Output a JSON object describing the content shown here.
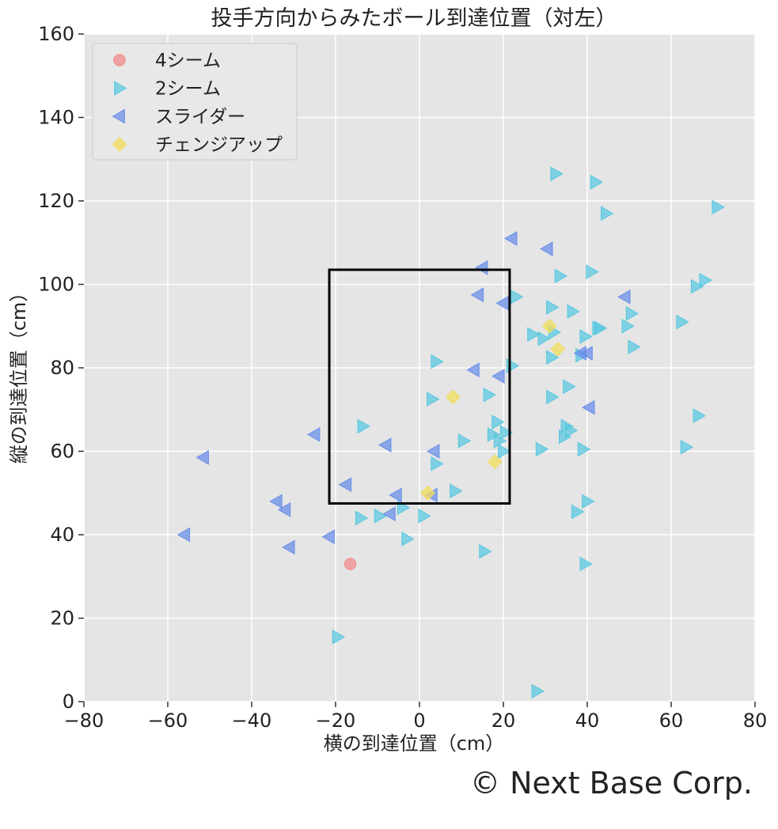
{
  "chart_data": {
    "type": "scatter",
    "title": "投手方向からみたボール到達位置（対左）",
    "xlabel": "横の到達位置（cm）",
    "ylabel": "縦の到達位置（cm）",
    "xlim": [
      -80,
      80
    ],
    "ylim": [
      0,
      160
    ],
    "xticks": [
      -80,
      -60,
      -40,
      -20,
      0,
      20,
      40,
      60,
      80
    ],
    "yticks": [
      0,
      20,
      40,
      60,
      80,
      100,
      120,
      140,
      160
    ],
    "xtick_labels": [
      "−80",
      "−60",
      "−40",
      "−20",
      "0",
      "20",
      "40",
      "60",
      "80"
    ],
    "ytick_labels": [
      "0",
      "20",
      "40",
      "60",
      "80",
      "100",
      "120",
      "140",
      "160"
    ],
    "grid": true,
    "legend_position": "top-left",
    "strike_zone": {
      "x": [
        -21.5,
        21.5
      ],
      "y": [
        47.5,
        103.5
      ]
    },
    "series": [
      {
        "name": "4シーム",
        "marker": "circle",
        "color": "#f28b8b",
        "points": [
          [
            -16.5,
            33
          ]
        ]
      },
      {
        "name": "2シーム",
        "marker": "triangle-right",
        "color": "#5bc8e0",
        "points": [
          [
            -19.5,
            15.5
          ],
          [
            -14,
            44
          ],
          [
            -13.5,
            66
          ],
          [
            -9.5,
            44.5
          ],
          [
            -4,
            46.5
          ],
          [
            -3,
            39
          ],
          [
            1,
            44.5
          ],
          [
            3,
            72.5
          ],
          [
            4,
            81.5
          ],
          [
            4,
            57
          ],
          [
            8.5,
            50.5
          ],
          [
            10.5,
            62.5
          ],
          [
            15.5,
            36
          ],
          [
            16.5,
            73.5
          ],
          [
            17.5,
            64
          ],
          [
            18.5,
            67
          ],
          [
            19,
            62.5
          ],
          [
            20,
            60
          ],
          [
            20.5,
            64.5
          ],
          [
            22,
            80.5
          ],
          [
            23,
            97
          ],
          [
            27,
            88
          ],
          [
            28,
            2.5
          ],
          [
            29,
            60.5
          ],
          [
            29.5,
            87
          ],
          [
            31.5,
            82.5
          ],
          [
            31.5,
            94.5
          ],
          [
            31.5,
            73
          ],
          [
            32,
            88.5
          ],
          [
            32.5,
            126.5
          ],
          [
            33.5,
            102
          ],
          [
            34.5,
            63.5
          ],
          [
            35,
            66
          ],
          [
            35.5,
            75.5
          ],
          [
            36,
            65
          ],
          [
            36.5,
            93.5
          ],
          [
            37.5,
            45.5
          ],
          [
            38.5,
            83
          ],
          [
            39,
            60.5
          ],
          [
            39.5,
            87.5
          ],
          [
            39.5,
            33
          ],
          [
            40,
            48
          ],
          [
            41,
            103
          ],
          [
            42,
            124.5
          ],
          [
            42.5,
            89.5
          ],
          [
            43,
            89.5
          ],
          [
            44.5,
            117
          ],
          [
            49.5,
            90
          ],
          [
            50.5,
            93
          ],
          [
            51,
            85
          ],
          [
            62.5,
            91
          ],
          [
            63.5,
            61
          ],
          [
            66,
            99.5
          ],
          [
            66.5,
            68.5
          ],
          [
            68,
            101
          ],
          [
            71,
            118.5
          ]
        ]
      },
      {
        "name": "スライダー",
        "marker": "triangle-left",
        "color": "#6b8fe8",
        "points": [
          [
            -56,
            40
          ],
          [
            -51.5,
            58.5
          ],
          [
            -34,
            48
          ],
          [
            -32,
            46
          ],
          [
            -31,
            37
          ],
          [
            -25,
            64
          ],
          [
            -21.5,
            39.5
          ],
          [
            -17.5,
            52
          ],
          [
            -8,
            61.5
          ],
          [
            -7,
            45
          ],
          [
            -5.5,
            49.5
          ],
          [
            3,
            49.5
          ],
          [
            3.5,
            60
          ],
          [
            13,
            79.5
          ],
          [
            14,
            97.5
          ],
          [
            15,
            104
          ],
          [
            19,
            78
          ],
          [
            20,
            95.5
          ],
          [
            22,
            111
          ],
          [
            30.5,
            108.5
          ],
          [
            38.5,
            83.5
          ],
          [
            40,
            83.5
          ],
          [
            40.5,
            70.5
          ],
          [
            49,
            97
          ]
        ]
      },
      {
        "name": "チェンジアップ",
        "marker": "diamond",
        "color": "#f0de5a",
        "points": [
          [
            2,
            50
          ],
          [
            8,
            73
          ],
          [
            18,
            57.5
          ],
          [
            31,
            90
          ],
          [
            33,
            84.5
          ]
        ]
      }
    ]
  },
  "copyright": "© Next Base Corp."
}
